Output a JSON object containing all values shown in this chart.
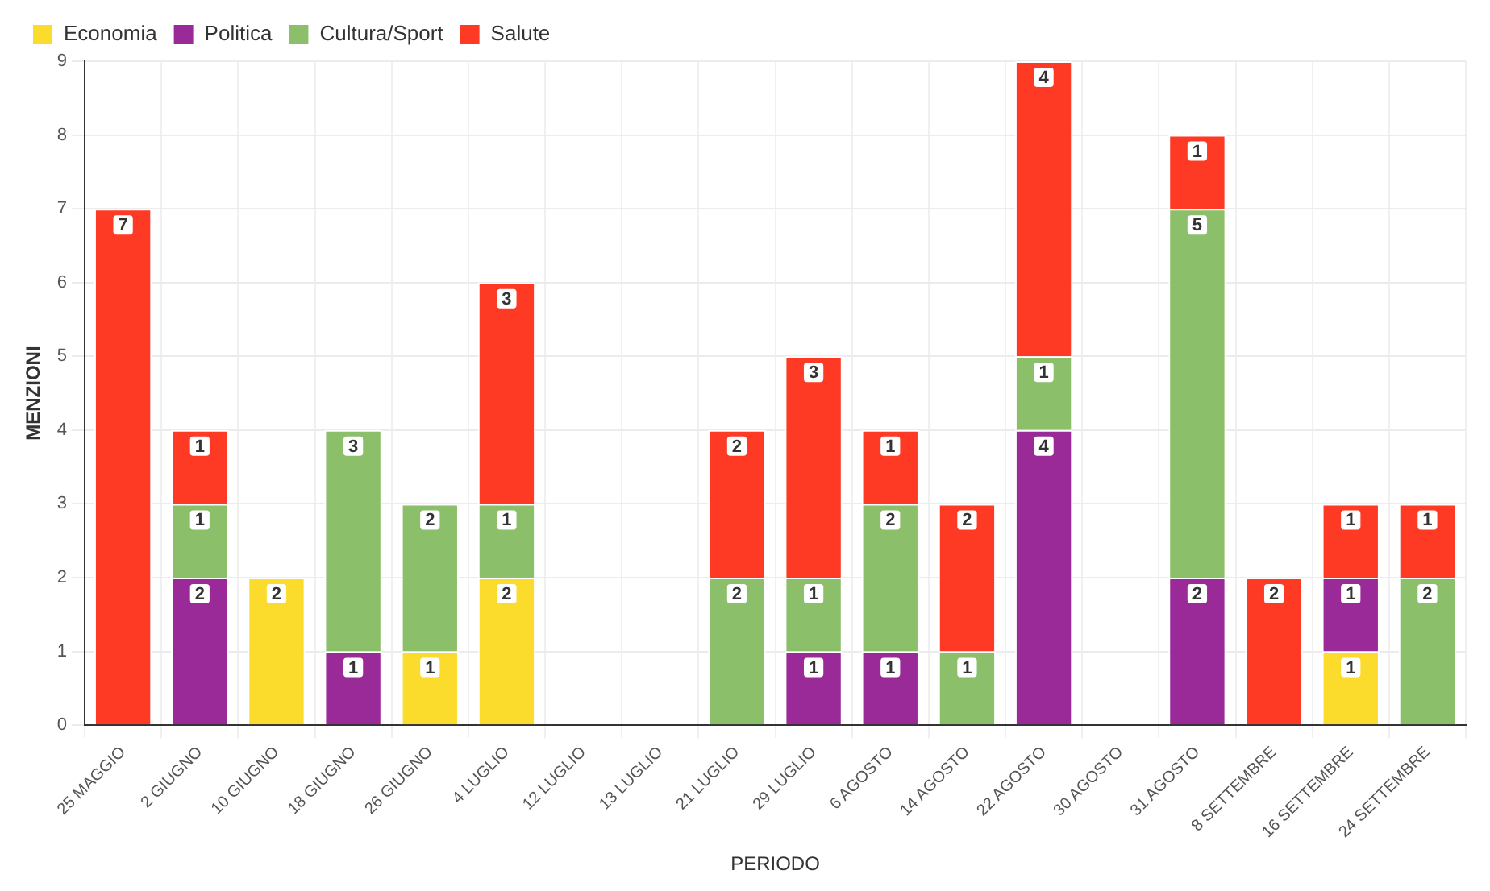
{
  "chart_data": {
    "type": "bar",
    "stacked": true,
    "xlabel": "PERIODO",
    "ylabel": "MENZIONI",
    "categories": [
      "25 MAGGIO",
      "2 GIUGNO",
      "10 GIUGNO",
      "18 GIUGNO",
      "26 GIUGNO",
      "4 LUGLIO",
      "12 LUGLIO",
      "13 LUGLIO",
      "21 LUGLIO",
      "29 LUGLIO",
      "6 AGOSTO",
      "14 AGOSTO",
      "22 AGOSTO",
      "30 AGOSTO",
      "31 AGOSTO",
      "8 SETTEMBRE",
      "16 SETTEMBRE",
      "24 SETTEMBRE"
    ],
    "series": [
      {
        "name": "Economia",
        "color": "#fbdc2d",
        "values": [
          null,
          null,
          2,
          null,
          1,
          2,
          null,
          null,
          null,
          null,
          null,
          null,
          null,
          null,
          null,
          null,
          1,
          null
        ]
      },
      {
        "name": "Politica",
        "color": "#9b2a99",
        "values": [
          null,
          2,
          null,
          1,
          null,
          null,
          null,
          null,
          null,
          1,
          1,
          null,
          4,
          null,
          2,
          null,
          1,
          null
        ]
      },
      {
        "name": "Cultura/Sport",
        "color": "#8bbf6a",
        "values": [
          null,
          1,
          null,
          3,
          2,
          1,
          null,
          null,
          2,
          1,
          2,
          1,
          1,
          null,
          5,
          null,
          null,
          2
        ]
      },
      {
        "name": "Salute",
        "color": "#ff3a24",
        "values": [
          7,
          1,
          null,
          null,
          null,
          3,
          null,
          null,
          2,
          3,
          1,
          2,
          4,
          null,
          1,
          2,
          1,
          1
        ]
      }
    ],
    "ylim": [
      0,
      9
    ],
    "yticks": [
      0,
      1,
      2,
      3,
      4,
      5,
      6,
      7,
      8,
      9
    ],
    "grid": true,
    "legend": "top left",
    "data_labels": true
  }
}
